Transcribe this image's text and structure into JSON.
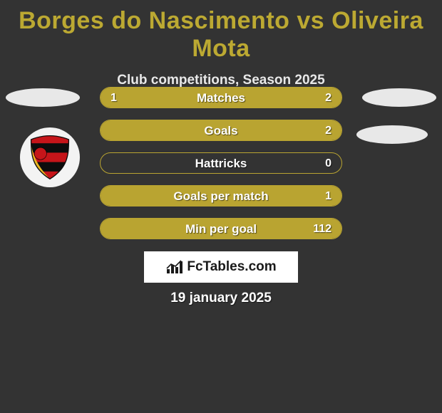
{
  "title": "Borges do Nascimento vs Oliveira Mota",
  "subtitle": "Club competitions, Season 2025",
  "date": "19 january 2025",
  "colors": {
    "background": "#333333",
    "accent": "#b9a431",
    "accent_title": "#bca932",
    "text": "#ffffff",
    "box_bg": "#ffffff",
    "oval": "#e8e8e8"
  },
  "brand": "FcTables.com",
  "rows": [
    {
      "label": "Matches",
      "left": "1",
      "right": "2",
      "left_pct": 33.3,
      "right_pct": 66.7
    },
    {
      "label": "Goals",
      "left": "",
      "right": "2",
      "left_pct": 0,
      "right_pct": 100
    },
    {
      "label": "Hattricks",
      "left": "",
      "right": "0",
      "left_pct": 0,
      "right_pct": 0
    },
    {
      "label": "Goals per match",
      "left": "",
      "right": "1",
      "left_pct": 0,
      "right_pct": 100
    },
    {
      "label": "Min per goal",
      "left": "",
      "right": "112",
      "left_pct": 0,
      "right_pct": 100
    }
  ]
}
